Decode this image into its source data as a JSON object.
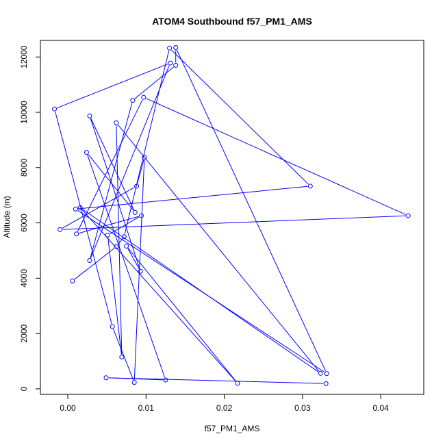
{
  "chart_data": {
    "type": "line",
    "title": "ATOM4 Southbound f57_PM1_AMS",
    "xlabel": "f57_PM1_AMS",
    "ylabel": "Altitude (m)",
    "xlim": [
      -0.0035,
      0.0455
    ],
    "ylim": [
      -200,
      12600
    ],
    "xticks": [
      0.0,
      0.01,
      0.02,
      0.03,
      0.04
    ],
    "xtick_labels": [
      "0.00",
      "0.01",
      "0.02",
      "0.03",
      "0.04"
    ],
    "yticks": [
      0,
      2000,
      4000,
      6000,
      8000,
      10000,
      12000
    ],
    "ytick_labels": [
      "0",
      "2000",
      "4000",
      "6000",
      "8000",
      "10000",
      "12000"
    ],
    "grid": false,
    "series_color": "#0000ff",
    "series": [
      {
        "x": [
          0.033,
          0.0049,
          0.0125,
          0.0024,
          0.0086,
          0.0028,
          0.0093,
          0.0075,
          0.0217,
          0.0016,
          0.0323,
          0.0062,
          0.0069,
          0.0051,
          0.0094,
          0.0011,
          0.0097,
          0.0435,
          -0.001,
          0.0088,
          0.0098,
          0.0085,
          0.0057,
          -0.0017,
          0.0131,
          0.0028,
          0.0083,
          0.0138,
          0.0138,
          0.0331,
          0.001,
          0.031,
          0.013,
          0.0072,
          0.0062,
          0.0006
        ],
        "y": [
          190,
          400,
          320,
          8550,
          6380,
          9870,
          4250,
          5160,
          200,
          6550,
          560,
          9620,
          1150,
          5560,
          6260,
          5600,
          10540,
          6260,
          5760,
          7330,
          8370,
          230,
          2250,
          10120,
          11780,
          4640,
          10430,
          11700,
          12340,
          550,
          6500,
          7330,
          12320,
          5500,
          5140,
          3900
        ]
      }
    ]
  }
}
